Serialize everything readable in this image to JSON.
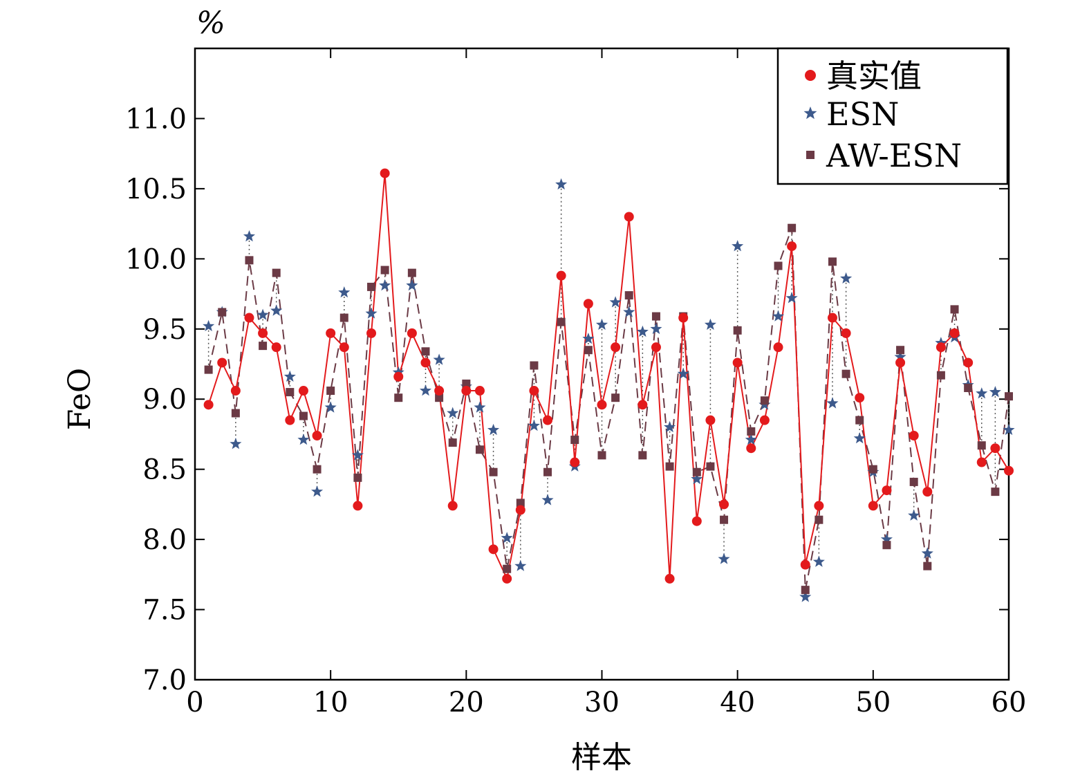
{
  "chart_data": {
    "type": "line",
    "xlabel": "样本",
    "ylabel": "FeO",
    "unit_label": "%",
    "xlim": [
      0,
      60
    ],
    "ylim": [
      7.0,
      11.5
    ],
    "xticks": [
      "0",
      "10",
      "20",
      "30",
      "40",
      "50",
      "60"
    ],
    "yticks": [
      "7.0",
      "7.5",
      "8.0",
      "8.5",
      "9.0",
      "9.5",
      "10.0",
      "10.5",
      "11.0"
    ],
    "grid": false,
    "legend_position": "top-right",
    "x": [
      1,
      2,
      3,
      4,
      5,
      6,
      7,
      8,
      9,
      10,
      11,
      12,
      13,
      14,
      15,
      16,
      17,
      18,
      19,
      20,
      21,
      22,
      23,
      24,
      25,
      26,
      27,
      28,
      29,
      30,
      31,
      32,
      33,
      34,
      35,
      36,
      37,
      38,
      39,
      40,
      41,
      42,
      43,
      44,
      45,
      46,
      47,
      48,
      49,
      50,
      51,
      52,
      53,
      54,
      55,
      56,
      57,
      58,
      59,
      60
    ],
    "series": [
      {
        "name": "真实值",
        "marker": "circle",
        "color": "#e31a1c",
        "line": "solid",
        "values": [
          8.96,
          9.26,
          9.06,
          9.58,
          9.47,
          9.37,
          8.85,
          9.06,
          8.74,
          9.47,
          9.37,
          8.24,
          9.47,
          10.61,
          9.16,
          9.47,
          9.26,
          9.06,
          8.24,
          9.06,
          9.06,
          7.93,
          7.72,
          8.21,
          9.06,
          8.85,
          9.88,
          8.55,
          9.68,
          8.96,
          9.37,
          10.3,
          8.96,
          9.37,
          7.72,
          9.58,
          8.13,
          8.85,
          8.25,
          9.26,
          8.65,
          8.85,
          9.37,
          10.09,
          7.82,
          8.24,
          9.58,
          9.47,
          9.01,
          8.24,
          8.35,
          9.26,
          8.74,
          8.34,
          9.37,
          9.47,
          9.26,
          8.55,
          8.65,
          8.49
        ]
      },
      {
        "name": "ESN",
        "marker": "star",
        "color": "#3d5a8c",
        "line": "none",
        "values": [
          9.52,
          9.62,
          8.68,
          10.16,
          9.6,
          9.63,
          9.16,
          8.71,
          8.34,
          8.94,
          9.76,
          8.6,
          9.61,
          9.81,
          9.19,
          9.81,
          9.06,
          9.28,
          8.9,
          9.09,
          8.94,
          8.78,
          8.01,
          7.81,
          8.81,
          8.28,
          10.53,
          8.52,
          9.43,
          9.53,
          9.69,
          9.62,
          9.48,
          9.5,
          8.8,
          9.18,
          8.43,
          9.53,
          7.86,
          10.09,
          8.71,
          8.96,
          9.59,
          9.72,
          7.59,
          7.84,
          8.97,
          9.86,
          8.72,
          8.48,
          8.0,
          9.3,
          8.17,
          7.9,
          9.4,
          9.44,
          9.1,
          9.04,
          9.05,
          8.78
        ]
      },
      {
        "name": "AW-ESN",
        "marker": "square",
        "color": "#6b3a45",
        "line": "dashed",
        "values": [
          9.21,
          9.62,
          8.9,
          9.99,
          9.38,
          9.9,
          9.05,
          8.88,
          8.5,
          9.06,
          9.58,
          8.44,
          9.8,
          9.92,
          9.01,
          9.9,
          9.34,
          9.01,
          8.69,
          9.11,
          8.64,
          8.48,
          7.79,
          8.26,
          9.24,
          8.48,
          9.55,
          8.71,
          9.35,
          8.6,
          9.01,
          9.74,
          8.6,
          9.59,
          8.52,
          9.59,
          8.48,
          8.52,
          8.14,
          9.49,
          8.77,
          8.99,
          9.95,
          10.22,
          7.64,
          8.14,
          9.98,
          9.18,
          8.85,
          8.5,
          7.96,
          9.35,
          8.41,
          7.81,
          9.17,
          9.64,
          9.08,
          8.67,
          8.34,
          9.02
        ]
      }
    ]
  }
}
